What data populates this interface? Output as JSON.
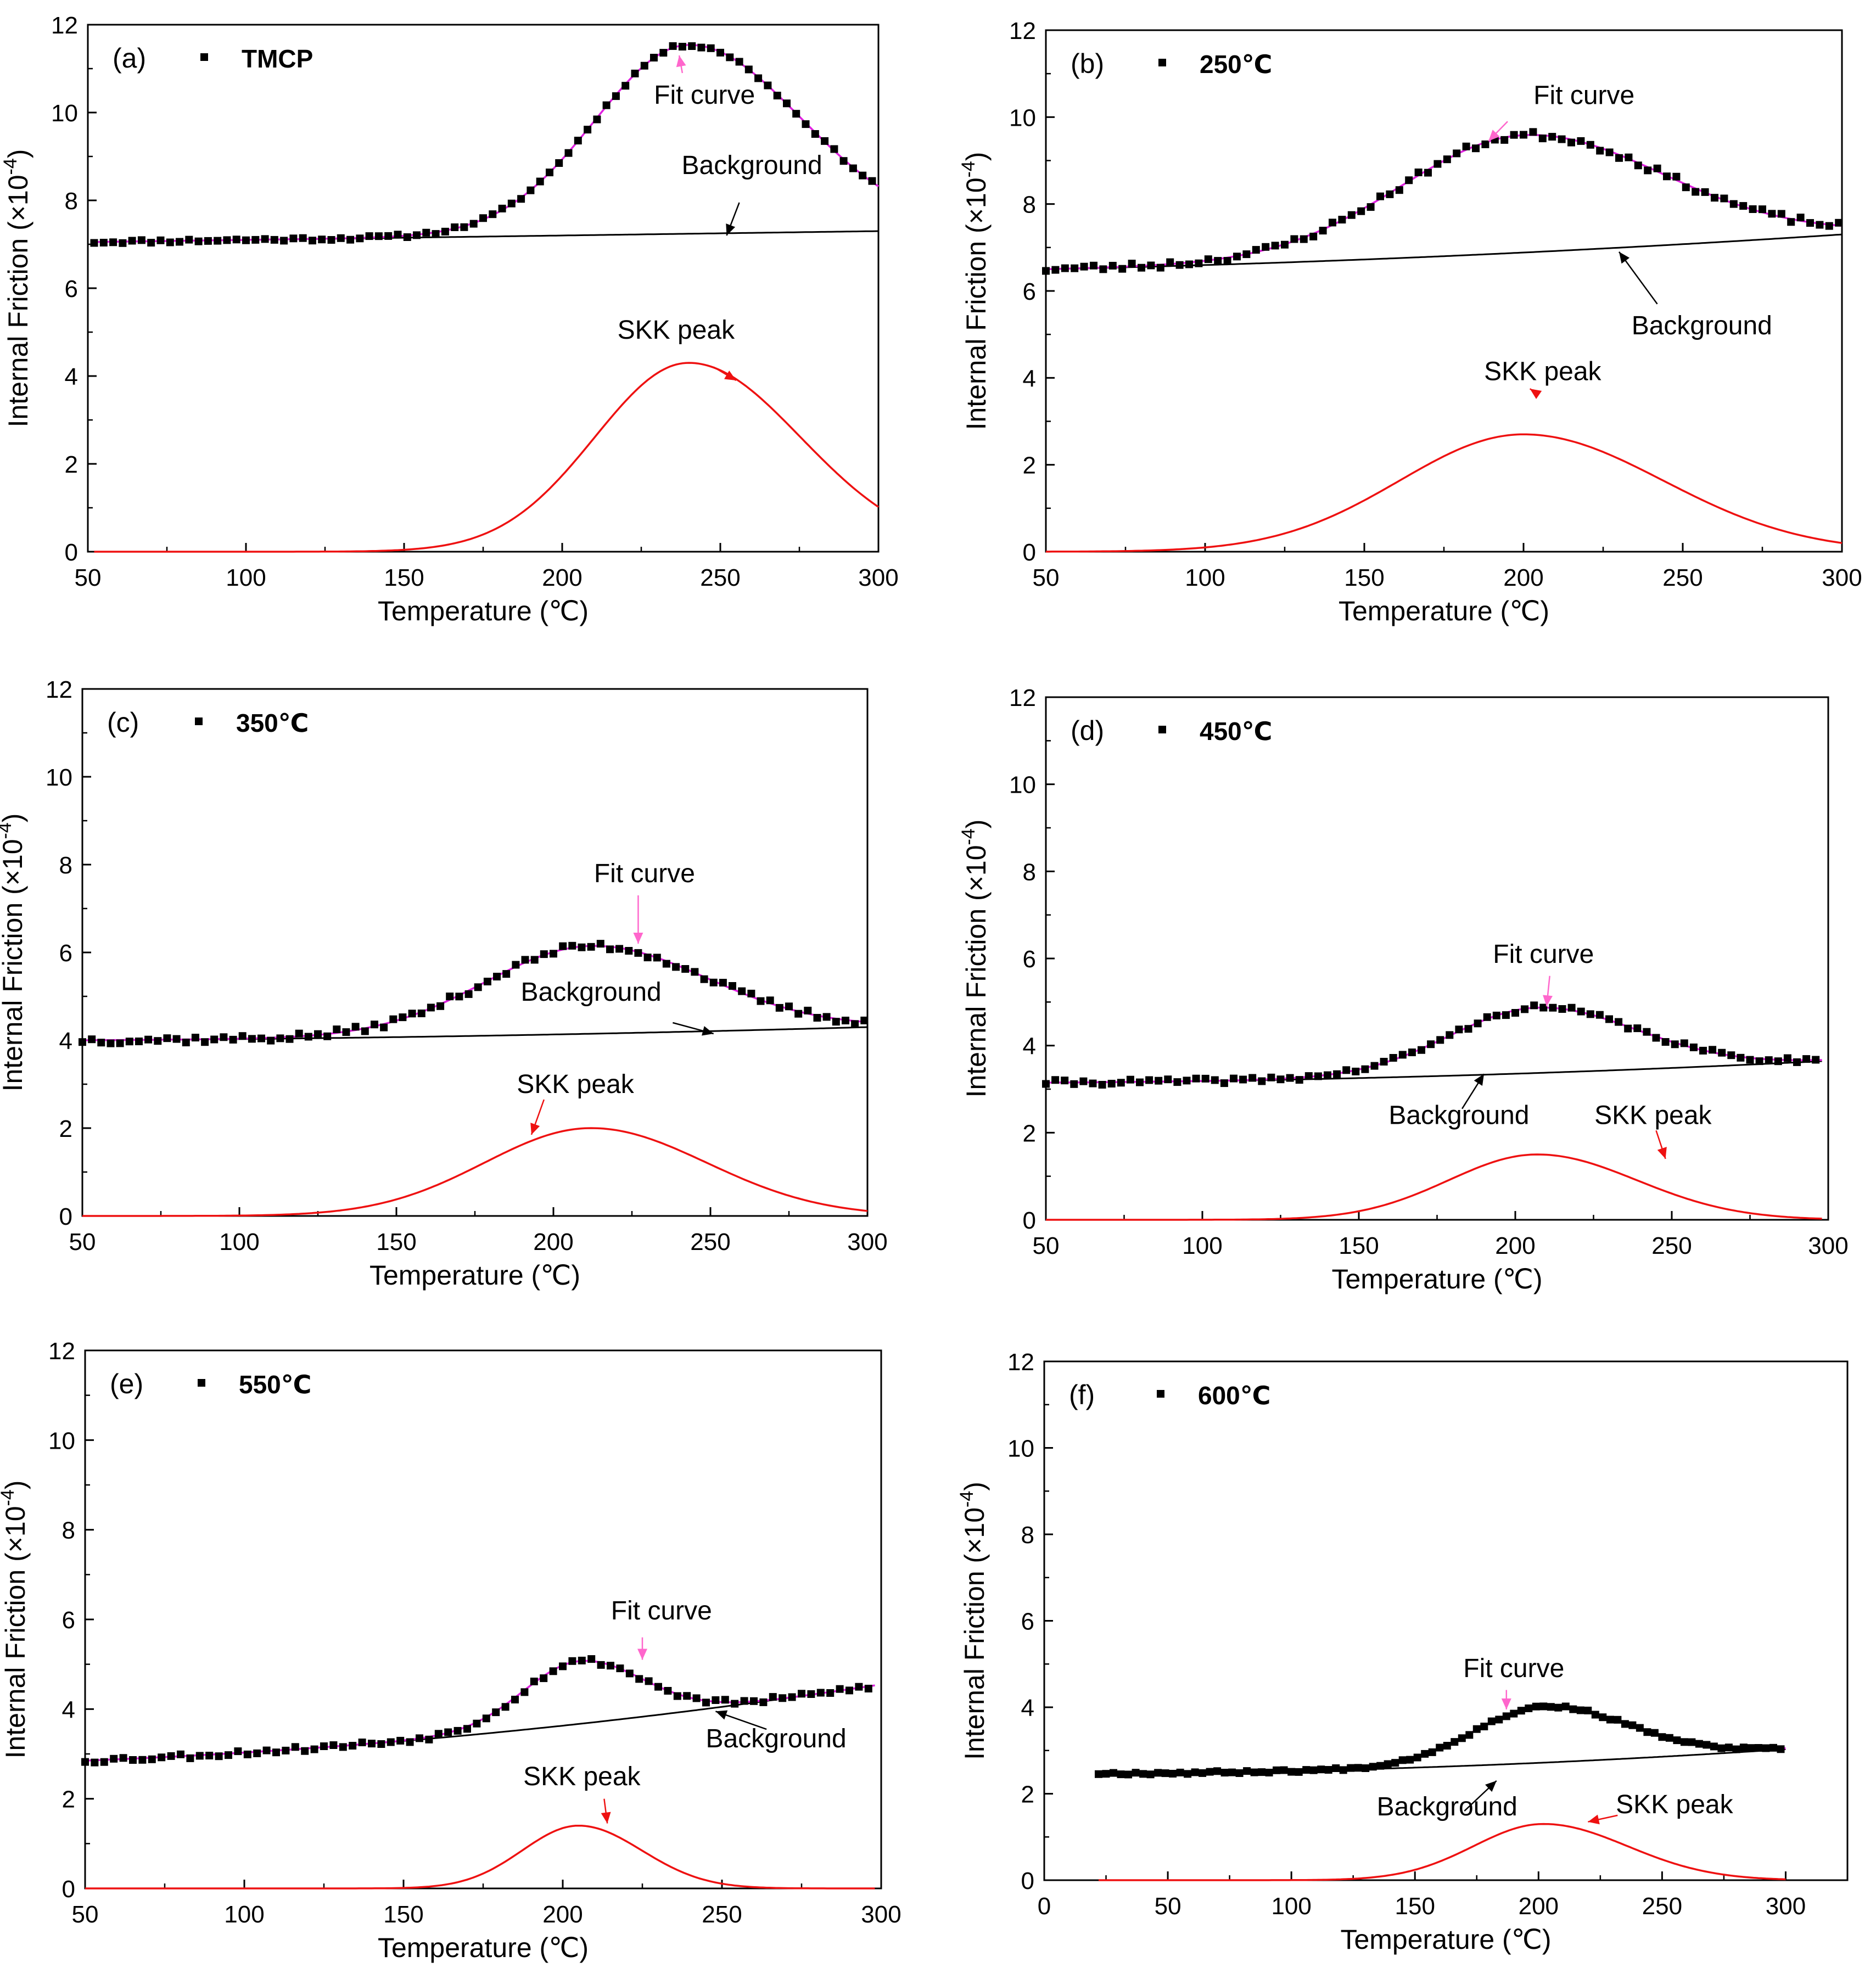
{
  "chart_data": [
    {
      "type": "line",
      "panel_label": "(a)",
      "legend_label": "TMCP",
      "xlabel": "Temperature (℃)",
      "ylabel": "Internal Friction (×10",
      "ylabel_sup": "-4",
      "ylabel_tail": ")",
      "xlim": [
        50,
        300
      ],
      "ylim": [
        0,
        12
      ],
      "xticks": [
        50,
        100,
        150,
        200,
        250,
        300
      ],
      "yticks": [
        0,
        2,
        4,
        6,
        8,
        10,
        12
      ],
      "background": {
        "b0": 7.05,
        "b1": 0.25,
        "b2": 0.0
      },
      "peak": {
        "amp": 4.3,
        "center": 240,
        "width_left": 42,
        "width_right": 50
      },
      "data_points": {
        "x_start": 52,
        "x_end": 300,
        "step": 3,
        "noise": 0.04,
        "seed": 11
      },
      "annotations": {
        "fit_curve": "Fit curve",
        "background": "Background",
        "skk_peak": "SKK peak"
      },
      "colors": {
        "data": "#000000",
        "fit": "#e020e0",
        "background": "#000000",
        "peak": "#ee1111",
        "fit_arrow": "#ff66cc",
        "peak_arrow": "#ee1111",
        "bg_arrow": "#000000"
      }
    },
    {
      "type": "line",
      "panel_label": "(b)",
      "legend_label": "250℃",
      "xlabel": "Temperature (℃)",
      "ylabel": "Internal Friction (×10",
      "ylabel_sup": "-4",
      "ylabel_tail": ")",
      "xlim": [
        50,
        300
      ],
      "ylim": [
        0,
        12
      ],
      "xticks": [
        50,
        100,
        150,
        200,
        250,
        300
      ],
      "yticks": [
        0,
        2,
        4,
        6,
        8,
        10,
        12
      ],
      "background": {
        "b0": 6.5,
        "b1": 0.4,
        "b2": 0.4
      },
      "peak": {
        "amp": 2.7,
        "center": 200,
        "width_left": 55,
        "width_right": 62
      },
      "data_points": {
        "x_start": 50,
        "x_end": 300,
        "step": 3,
        "noise": 0.08,
        "seed": 23
      },
      "annotations": {
        "fit_curve": "Fit curve",
        "background": "Background",
        "skk_peak": "SKK peak"
      },
      "colors": {
        "data": "#000000",
        "fit": "#e020e0",
        "background": "#000000",
        "peak": "#ee1111",
        "fit_arrow": "#ff66cc",
        "peak_arrow": "#ee1111",
        "bg_arrow": "#000000"
      }
    },
    {
      "type": "line",
      "panel_label": "(c)",
      "legend_label": "350℃",
      "xlabel": "Temperature (℃)",
      "ylabel": "Internal Friction (×10",
      "ylabel_sup": "-4",
      "ylabel_tail": ")",
      "xlim": [
        50,
        300
      ],
      "ylim": [
        0,
        12
      ],
      "xticks": [
        50,
        100,
        150,
        200,
        250,
        300
      ],
      "yticks": [
        0,
        2,
        4,
        6,
        8,
        10,
        12
      ],
      "background": {
        "b0": 4.0,
        "b1": 0.1,
        "b2": 0.2
      },
      "peak": {
        "amp": 2.0,
        "center": 212,
        "width_left": 48,
        "width_right": 52
      },
      "data_points": {
        "x_start": 50,
        "x_end": 300,
        "step": 3,
        "noise": 0.08,
        "seed": 37
      },
      "annotations": {
        "fit_curve": "Fit curve",
        "background": "Background",
        "skk_peak": "SKK peak"
      },
      "colors": {
        "data": "#000000",
        "fit": "#e020e0",
        "background": "#000000",
        "peak": "#ee1111",
        "fit_arrow": "#ff66cc",
        "peak_arrow": "#ee1111",
        "bg_arrow": "#000000"
      }
    },
    {
      "type": "line",
      "panel_label": "(d)",
      "legend_label": "450℃",
      "xlabel": "Temperature (℃)",
      "ylabel": "Internal Friction (×10",
      "ylabel_sup": "-4",
      "ylabel_tail": ")",
      "xlim": [
        50,
        300
      ],
      "ylim": [
        0,
        12
      ],
      "xticks": [
        50,
        100,
        150,
        200,
        250,
        300
      ],
      "yticks": [
        0,
        2,
        4,
        6,
        8,
        10,
        12
      ],
      "background": {
        "b0": 3.15,
        "b1": 0.1,
        "b2": 0.4
      },
      "peak": {
        "amp": 1.5,
        "center": 207,
        "width_left": 40,
        "width_right": 45
      },
      "data_points": {
        "x_start": 50,
        "x_end": 298,
        "step": 3,
        "noise": 0.06,
        "seed": 41
      },
      "annotations": {
        "fit_curve": "Fit curve",
        "background": "Background",
        "skk_peak": "SKK peak"
      },
      "colors": {
        "data": "#000000",
        "fit": "#e020e0",
        "background": "#000000",
        "peak": "#ee1111",
        "fit_arrow": "#ff66cc",
        "peak_arrow": "#ee1111",
        "bg_arrow": "#000000"
      }
    },
    {
      "type": "line",
      "panel_label": "(e)",
      "legend_label": "550℃",
      "xlabel": "Temperature (℃)",
      "ylabel": "Internal Friction (×10",
      "ylabel_sup": "-4",
      "ylabel_tail": ")",
      "xlim": [
        50,
        300
      ],
      "ylim": [
        0,
        12
      ],
      "xticks": [
        50,
        100,
        150,
        200,
        250,
        300
      ],
      "yticks": [
        0,
        2,
        4,
        6,
        8,
        10,
        12
      ],
      "background": {
        "b0": 2.85,
        "b1": 0.7,
        "b2": 1.0
      },
      "peak": {
        "amp": 1.4,
        "center": 205,
        "width_left": 25,
        "width_right": 28
      },
      "data_points": {
        "x_start": 50,
        "x_end": 298,
        "step": 3,
        "noise": 0.06,
        "seed": 53
      },
      "annotations": {
        "fit_curve": "Fit curve",
        "background": "Background",
        "skk_peak": "SKK peak"
      },
      "colors": {
        "data": "#000000",
        "fit": "#e020e0",
        "background": "#000000",
        "peak": "#ee1111",
        "fit_arrow": "#ff66cc",
        "peak_arrow": "#ee1111",
        "bg_arrow": "#000000"
      }
    },
    {
      "type": "line",
      "panel_label": "(f)",
      "legend_label": "600℃",
      "xlabel": "Temperature (℃)",
      "ylabel": "Internal Friction (×10",
      "ylabel_sup": "-4",
      "ylabel_tail": ")",
      "xlim": [
        0,
        325
      ],
      "ylim": [
        0,
        12
      ],
      "xticks": [
        0,
        50,
        100,
        150,
        200,
        250,
        300
      ],
      "yticks": [
        0,
        2,
        4,
        6,
        8,
        10,
        12
      ],
      "background": {
        "b0": 2.48,
        "b1": 0.15,
        "b2": 0.4
      },
      "peak": {
        "amp": 1.3,
        "center": 202,
        "width_left": 40,
        "width_right": 48
      },
      "data_points": {
        "x_start": 22,
        "x_end": 300,
        "step": 3,
        "noise": 0.03,
        "seed": 67
      },
      "annotations": {
        "fit_curve": "Fit curve",
        "background": "Background",
        "skk_peak": "SKK peak"
      },
      "colors": {
        "data": "#000000",
        "fit": "#e020e0",
        "background": "#000000",
        "peak": "#ee1111",
        "fit_arrow": "#ff66cc",
        "peak_arrow": "#ee1111",
        "bg_arrow": "#000000"
      }
    }
  ]
}
